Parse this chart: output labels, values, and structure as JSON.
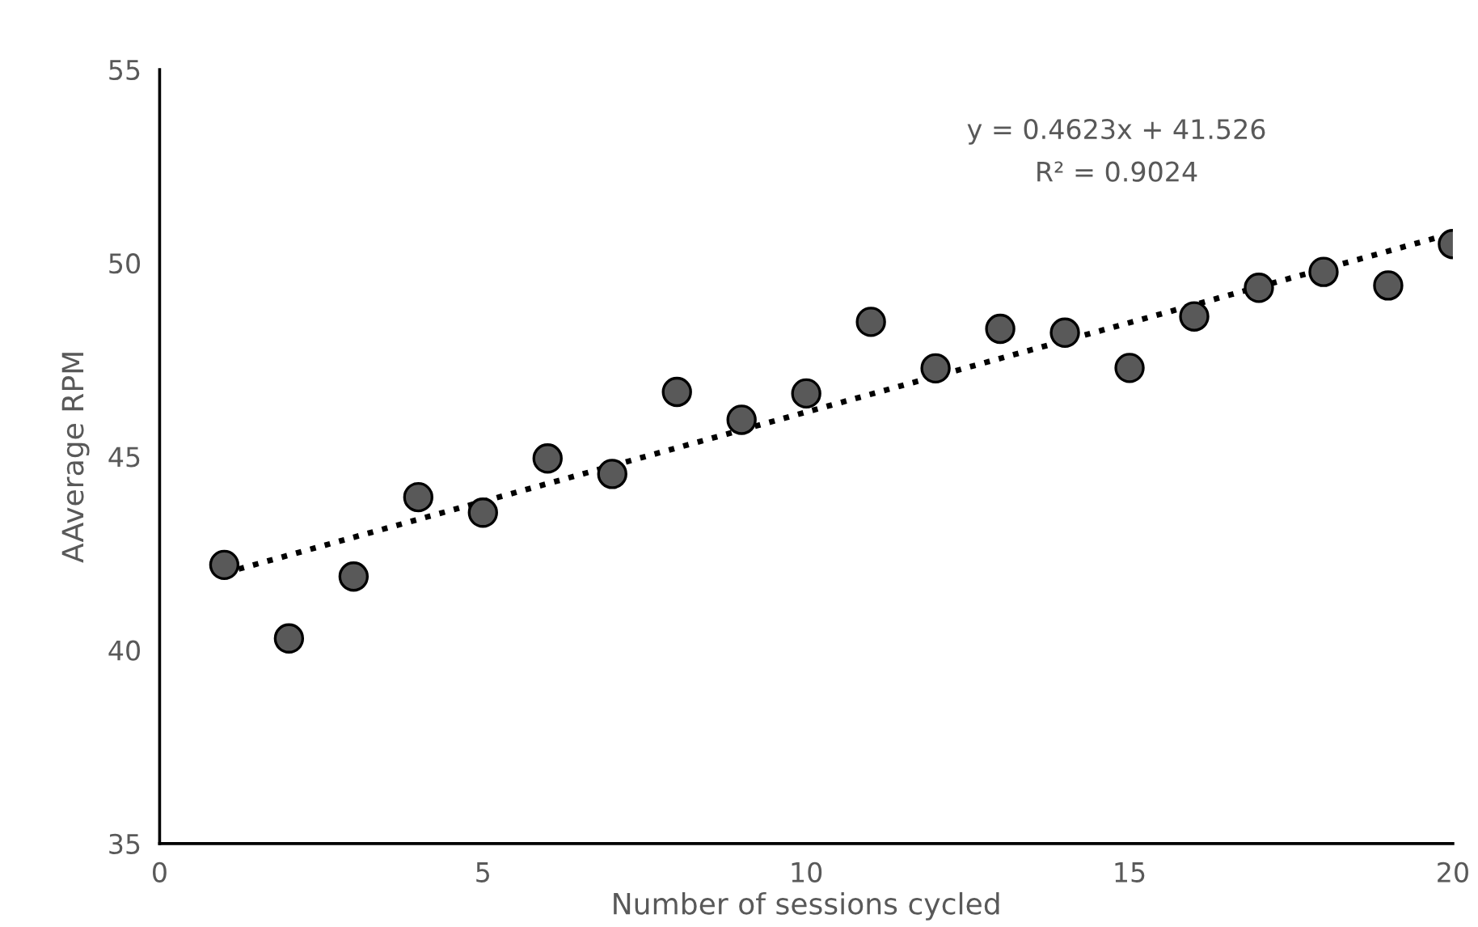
{
  "chart_data": {
    "type": "scatter",
    "xlabel": "Number of sessions cycled",
    "ylabel": "AAverage RPM",
    "xlim": [
      0,
      20
    ],
    "xticks": [
      0,
      5,
      10,
      15,
      20
    ],
    "ylim": [
      35,
      55
    ],
    "yticks": [
      35,
      40,
      45,
      50,
      55
    ],
    "grid": false,
    "marker": "circle",
    "series": [
      {
        "color": "#595959",
        "x": [
          1,
          2,
          3,
          4,
          5,
          6,
          7,
          8,
          9,
          10,
          11,
          12,
          13,
          14,
          15,
          16,
          17,
          18,
          19,
          20
        ],
        "values": [
          42.2,
          40.3,
          41.9,
          43.95,
          43.55,
          44.95,
          44.55,
          46.67,
          45.95,
          46.63,
          48.48,
          47.28,
          48.3,
          48.2,
          47.29,
          48.62,
          49.36,
          49.77,
          49.42,
          50.49
        ]
      },
      {
        "type": "line",
        "color": "#000000",
        "line_style": "dotted",
        "marker": "none",
        "x": [
          1,
          20
        ],
        "values": [
          41.99,
          50.77
        ]
      }
    ],
    "annotations": [
      "y = 0.4623x + 41.526",
      "R² = 0.9024"
    ]
  }
}
